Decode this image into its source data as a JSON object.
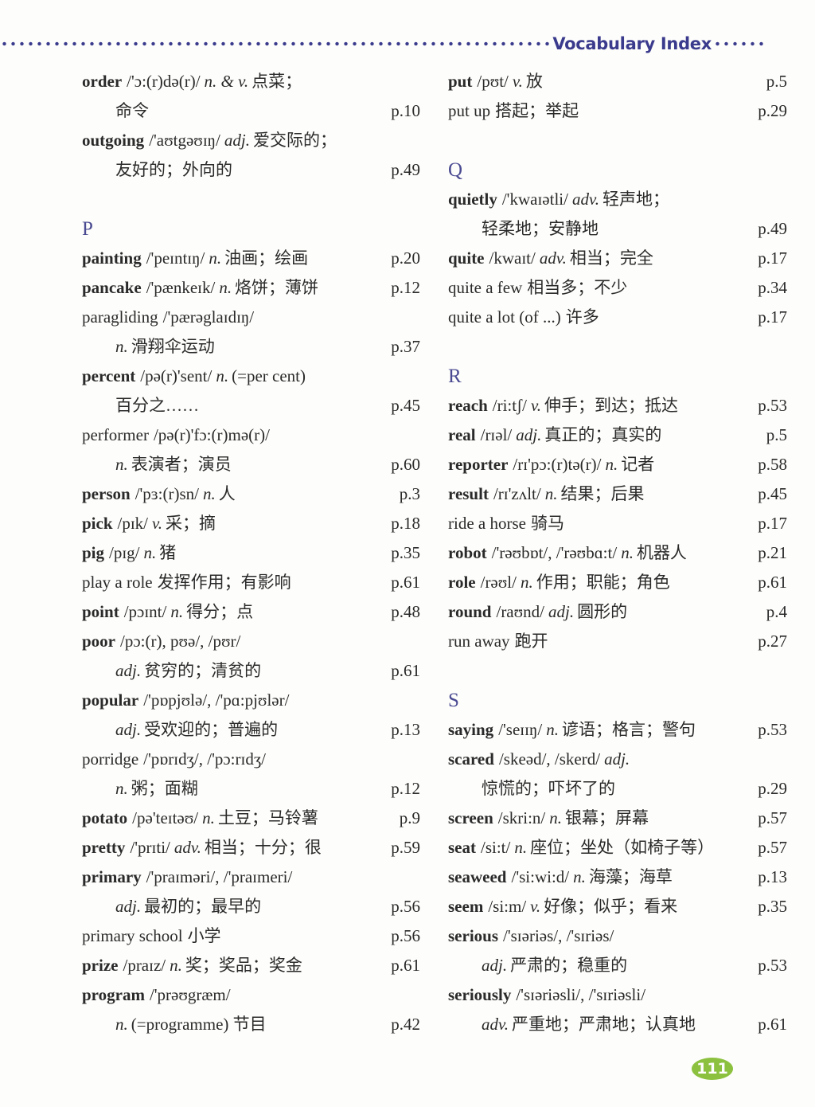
{
  "header": {
    "title": "Vocabulary Index"
  },
  "page_number": "111",
  "colors": {
    "accent": "#3b3b8e",
    "page_badge": "#8cc13f"
  },
  "columns": [
    {
      "items": [
        {
          "word": "order",
          "bold": true,
          "phon": "/'ɔ:(r)də(r)/",
          "pos": "n. & v.",
          "def": "点菜；",
          "def2": "命令",
          "page": "p.10"
        },
        {
          "word": "outgoing",
          "bold": true,
          "phon": "/'aʊtgəʊɪŋ/",
          "pos": "adj.",
          "def": "爱交际的；",
          "def2": "友好的；外向的",
          "page": "p.49"
        },
        {
          "gap": true
        },
        {
          "section": "P"
        },
        {
          "word": "painting",
          "bold": true,
          "phon": "/'peɪntɪŋ/",
          "pos": "n.",
          "def": "油画；绘画",
          "page": "p.20"
        },
        {
          "word": "pancake",
          "bold": true,
          "phon": "/'pænkeɪk/",
          "pos": "n.",
          "def": "烙饼；薄饼",
          "page": "p.12"
        },
        {
          "word": "paragliding",
          "bold": false,
          "phon": "/'pærəglaɪdɪŋ/",
          "pos2": "n.",
          "def2": "滑翔伞运动",
          "page": "p.37"
        },
        {
          "word": "percent",
          "bold": true,
          "phon": "/pə(r)'sent/",
          "pos": "n.",
          "def": "(=per cent)",
          "def2": "百分之……",
          "page": "p.45"
        },
        {
          "word": "performer",
          "bold": false,
          "phon": "/pə(r)'fɔ:(r)mə(r)/",
          "pos2": "n.",
          "def2": "表演者；演员",
          "page": "p.60"
        },
        {
          "word": "person",
          "bold": true,
          "phon": "/'pɜ:(r)sn/",
          "pos": "n.",
          "def": "人",
          "page": "p.3"
        },
        {
          "word": "pick",
          "bold": true,
          "phon": "/pɪk/",
          "pos": "v.",
          "def": "采；摘",
          "page": "p.18"
        },
        {
          "word": "pig",
          "bold": true,
          "phon": "/pɪg/",
          "pos": "n.",
          "def": "猪",
          "page": "p.35"
        },
        {
          "word": "play a role",
          "bold": false,
          "def": "发挥作用；有影响",
          "page": "p.61"
        },
        {
          "word": "point",
          "bold": true,
          "phon": "/pɔɪnt/",
          "pos": "n.",
          "def": "得分；点",
          "page": "p.48"
        },
        {
          "word": "poor",
          "bold": true,
          "phon": "/pɔ:(r), pʊə/, /pʊr/",
          "pos2": "adj.",
          "def2": "贫穷的；清贫的",
          "page": "p.61"
        },
        {
          "word": "popular",
          "bold": true,
          "phon": "/'pɒpjʊlə/, /'pɑ:pjʊlər/",
          "pos2": "adj.",
          "def2": "受欢迎的；普遍的",
          "page": "p.13"
        },
        {
          "word": "porridge",
          "bold": false,
          "phon": "/'pɒrɪdʒ/, /'pɔ:rɪdʒ/",
          "pos2": "n.",
          "def2": "粥；面糊",
          "page": "p.12"
        },
        {
          "word": "potato",
          "bold": true,
          "phon": "/pə'teɪtəʊ/",
          "pos": "n.",
          "def": "土豆；马铃薯",
          "page": "p.9"
        },
        {
          "word": "pretty",
          "bold": true,
          "phon": "/'prɪti/",
          "pos": "adv.",
          "def": "相当；十分；很",
          "page": "p.59"
        },
        {
          "word": "primary",
          "bold": true,
          "phon": "/'praɪməri/, /'praɪmeri/",
          "pos2": "adj.",
          "def2": "最初的；最早的",
          "page": "p.56"
        },
        {
          "word": "primary school",
          "bold": false,
          "def": "小学",
          "page": "p.56"
        },
        {
          "word": "prize",
          "bold": true,
          "phon": "/praɪz/",
          "pos": "n.",
          "def": "奖；奖品；奖金",
          "page": "p.61"
        },
        {
          "word": "program",
          "bold": true,
          "phon": "/'prəʊgræm/",
          "pos2": "n.",
          "def2": "(=programme) 节目",
          "page": "p.42"
        }
      ]
    },
    {
      "items": [
        {
          "word": "put",
          "bold": true,
          "phon": "/pʊt/",
          "pos": "v.",
          "def": "放",
          "page": "p.5"
        },
        {
          "word": "put up",
          "bold": false,
          "def": "搭起；举起",
          "page": "p.29"
        },
        {
          "gap": true
        },
        {
          "section": "Q"
        },
        {
          "word": "quietly",
          "bold": true,
          "phon": "/'kwaɪətli/",
          "pos": "adv.",
          "def": "轻声地；",
          "def2": "轻柔地；安静地",
          "page": "p.49"
        },
        {
          "word": "quite",
          "bold": true,
          "phon": "/kwaɪt/",
          "pos": "adv.",
          "def": "相当；完全",
          "page": "p.17"
        },
        {
          "word": "quite a few",
          "bold": false,
          "def": "相当多；不少",
          "page": "p.34"
        },
        {
          "word": "quite a lot (of ...)",
          "bold": false,
          "def": "许多",
          "page": "p.17"
        },
        {
          "gap": true
        },
        {
          "section": "R"
        },
        {
          "word": "reach",
          "bold": true,
          "phon": "/ri:tʃ/",
          "pos": "v.",
          "def": "伸手；到达；抵达",
          "page": "p.53"
        },
        {
          "word": "real",
          "bold": true,
          "phon": "/rɪəl/",
          "pos": "adj.",
          "def": "真正的；真实的",
          "page": "p.5"
        },
        {
          "word": "reporter",
          "bold": true,
          "phon": "/rɪ'pɔ:(r)tə(r)/",
          "pos": "n.",
          "def": "记者",
          "page": "p.58"
        },
        {
          "word": "result",
          "bold": true,
          "phon": "/rɪ'zʌlt/",
          "pos": "n.",
          "def": "结果；后果",
          "page": "p.45"
        },
        {
          "word": "ride a horse",
          "bold": false,
          "def": "骑马",
          "page": "p.17"
        },
        {
          "word": "robot",
          "bold": true,
          "phon": "/'rəʊbɒt/, /'rəʊbɑ:t/",
          "pos": "n.",
          "def": "机器人",
          "page": "p.21"
        },
        {
          "word": "role",
          "bold": true,
          "phon": "/rəʊl/",
          "pos": "n.",
          "def": "作用；职能；角色",
          "page": "p.61"
        },
        {
          "word": "round",
          "bold": true,
          "phon": "/raʊnd/",
          "pos": "adj.",
          "def": "圆形的",
          "page": "p.4"
        },
        {
          "word": "run away",
          "bold": false,
          "def": "跑开",
          "page": "p.27"
        },
        {
          "gap": true
        },
        {
          "section": "S"
        },
        {
          "word": "saying",
          "bold": true,
          "phon": "/'seɪɪŋ/",
          "pos": "n.",
          "def": "谚语；格言；警句",
          "page": "p.53"
        },
        {
          "word": "scared",
          "bold": true,
          "phon": "/skeəd/, /skerd/",
          "pos": "adj.",
          "def2": "惊慌的；吓坏了的",
          "page": "p.29"
        },
        {
          "word": "screen",
          "bold": true,
          "phon": "/skri:n/",
          "pos": "n.",
          "def": "银幕；屏幕",
          "page": "p.57"
        },
        {
          "word": "seat",
          "bold": true,
          "phon": "/si:t/",
          "pos": "n.",
          "def": "座位；坐处（如椅子等）",
          "page": "p.57"
        },
        {
          "word": "seaweed",
          "bold": true,
          "phon": "/'si:wi:d/",
          "pos": "n.",
          "def": "海藻；海草",
          "page": "p.13"
        },
        {
          "word": "seem",
          "bold": true,
          "phon": "/si:m/",
          "pos": "v.",
          "def": "好像；似乎；看来",
          "page": "p.35"
        },
        {
          "word": "serious",
          "bold": true,
          "phon": "/'sɪəriəs/, /'sɪriəs/",
          "pos2": "adj.",
          "def2": "严肃的；稳重的",
          "page": "p.53"
        },
        {
          "word": "seriously",
          "bold": true,
          "phon": "/'sɪəriəsli/, /'sɪriəsli/",
          "pos2": "adv.",
          "def2": "严重地；严肃地；认真地",
          "page": "p.61"
        }
      ]
    }
  ]
}
